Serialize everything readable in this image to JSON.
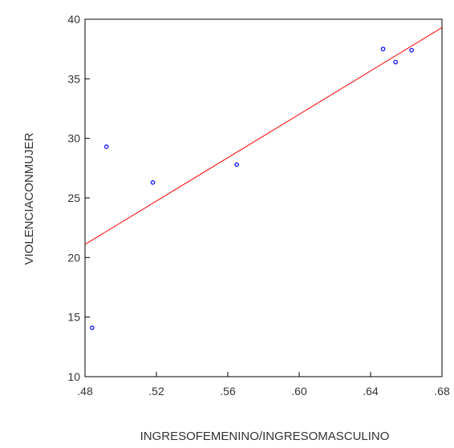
{
  "chart_data": {
    "type": "scatter",
    "xlabel": "INGRESOFEMENINO/INGRESOMASCULINO",
    "ylabel": "VIOLENCIACONMUJER",
    "xlim": [
      0.48,
      0.68
    ],
    "ylim": [
      10,
      40
    ],
    "xticks": [
      0.48,
      0.52,
      0.56,
      0.6,
      0.64,
      0.68
    ],
    "xtick_labels": [
      ".48",
      ".52",
      ".56",
      ".60",
      ".64",
      ".68"
    ],
    "yticks": [
      10,
      15,
      20,
      25,
      30,
      35,
      40
    ],
    "ytick_labels": [
      "10",
      "15",
      "20",
      "25",
      "30",
      "35",
      "40"
    ],
    "grid": false,
    "series": [
      {
        "points": [
          {
            "x": 0.484,
            "y": 14.1
          },
          {
            "x": 0.492,
            "y": 29.3
          },
          {
            "x": 0.518,
            "y": 26.3
          },
          {
            "x": 0.565,
            "y": 27.8
          },
          {
            "x": 0.647,
            "y": 37.5
          },
          {
            "x": 0.654,
            "y": 36.4
          },
          {
            "x": 0.663,
            "y": 37.4
          }
        ],
        "color": "#0000ff",
        "marker": "circle-open"
      }
    ],
    "fit_line": {
      "x": [
        0.48,
        0.68
      ],
      "y": [
        21.1,
        39.3
      ],
      "color": "#ff0000"
    }
  }
}
